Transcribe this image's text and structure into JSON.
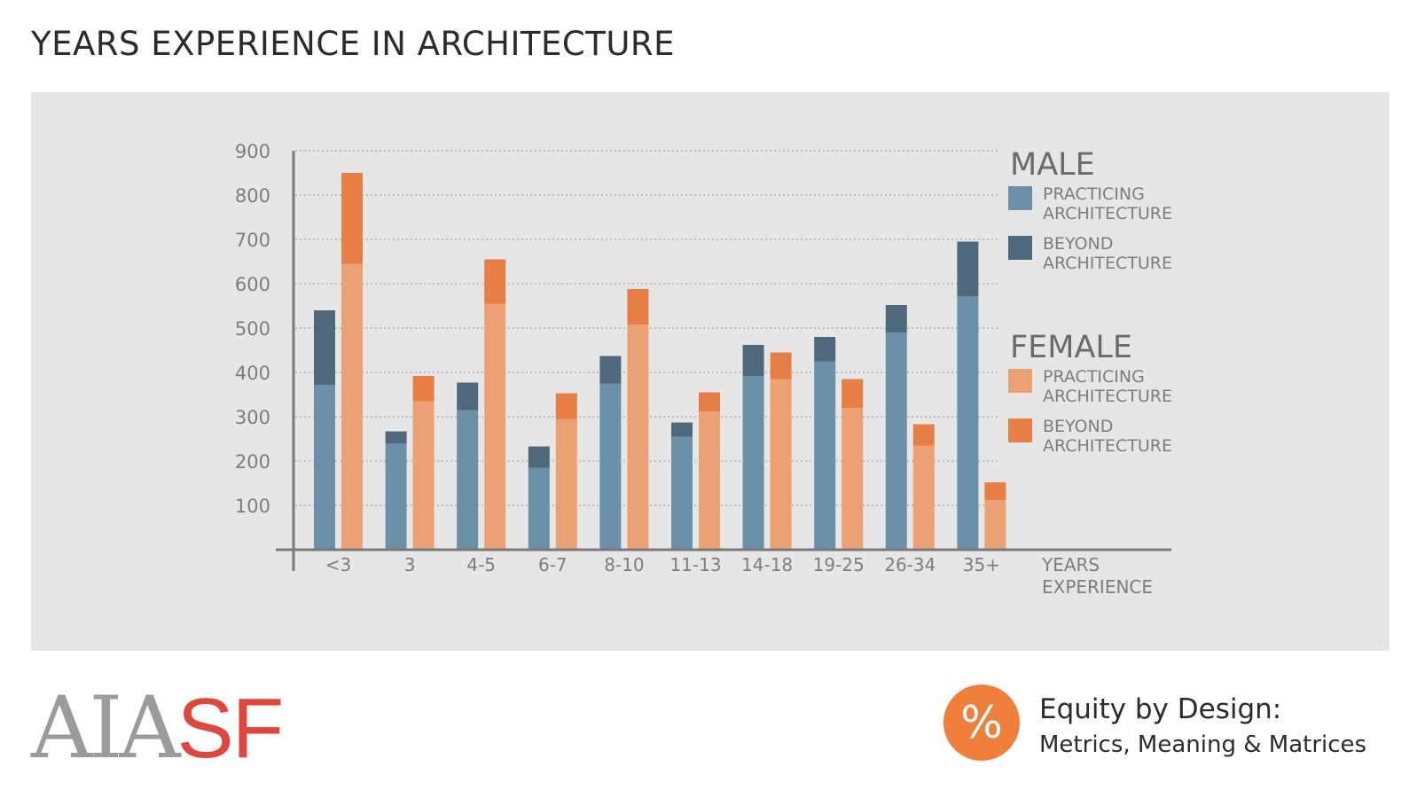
{
  "page": {
    "title": "YEARS EXPERIENCE IN ARCHITECTURE"
  },
  "colors": {
    "male_practicing": "#6a91a8",
    "male_beyond": "#4f697c",
    "female_practicing": "#eca174",
    "female_beyond": "#e77e44",
    "grid": "#a3a3a3",
    "axis": "#7a7a7a",
    "panel": "#e6e6e6"
  },
  "chart_data": {
    "type": "bar",
    "stacked": true,
    "title": "YEARS EXPERIENCE IN ARCHITECTURE",
    "xlabel": "YEARS EXPERIENCE",
    "ylabel": "",
    "ylim": [
      0,
      900
    ],
    "yticks": [
      100,
      200,
      300,
      400,
      500,
      600,
      700,
      800,
      900
    ],
    "grid": true,
    "legend_position": "right",
    "categories": [
      "<3",
      "3",
      "4-5",
      "6-7",
      "8-10",
      "11-13",
      "14-18",
      "19-25",
      "26-34",
      "35+"
    ],
    "groups": [
      {
        "name": "MALE",
        "series": [
          {
            "name": "PRACTICING ARCHITECTURE",
            "key": "male_practicing",
            "values": [
              372,
              240,
              315,
              185,
              375,
              255,
              392,
              425,
              490,
              572
            ]
          },
          {
            "name": "BEYOND ARCHITECTURE",
            "key": "male_beyond",
            "values": [
              168,
              27,
              62,
              48,
              62,
              32,
              70,
              55,
              62,
              123
            ]
          }
        ]
      },
      {
        "name": "FEMALE",
        "series": [
          {
            "name": "PRACTICING ARCHITECTURE",
            "key": "female_practicing",
            "values": [
              645,
              335,
              555,
              295,
              508,
              312,
              385,
              320,
              235,
              112
            ]
          },
          {
            "name": "BEYOND ARCHITECTURE",
            "key": "female_beyond",
            "values": [
              205,
              57,
              100,
              58,
              80,
              43,
              60,
              65,
              48,
              40
            ]
          }
        ]
      }
    ]
  },
  "legend": {
    "male_heading": "MALE",
    "female_heading": "FEMALE",
    "practicing_line1": "PRACTICING",
    "practicing_line2": "ARCHITECTURE",
    "beyond_line1": "BEYOND",
    "beyond_line2": "ARCHITECTURE"
  },
  "axis": {
    "x_title_line1": "YEARS",
    "x_title_line2": "EXPERIENCE"
  },
  "footer": {
    "logo_part1": "AIA",
    "logo_part2": "SF",
    "equity_symbol": "%",
    "equity_title": "Equity by Design:",
    "equity_subtitle": "Metrics, Meaning & Matrices"
  }
}
